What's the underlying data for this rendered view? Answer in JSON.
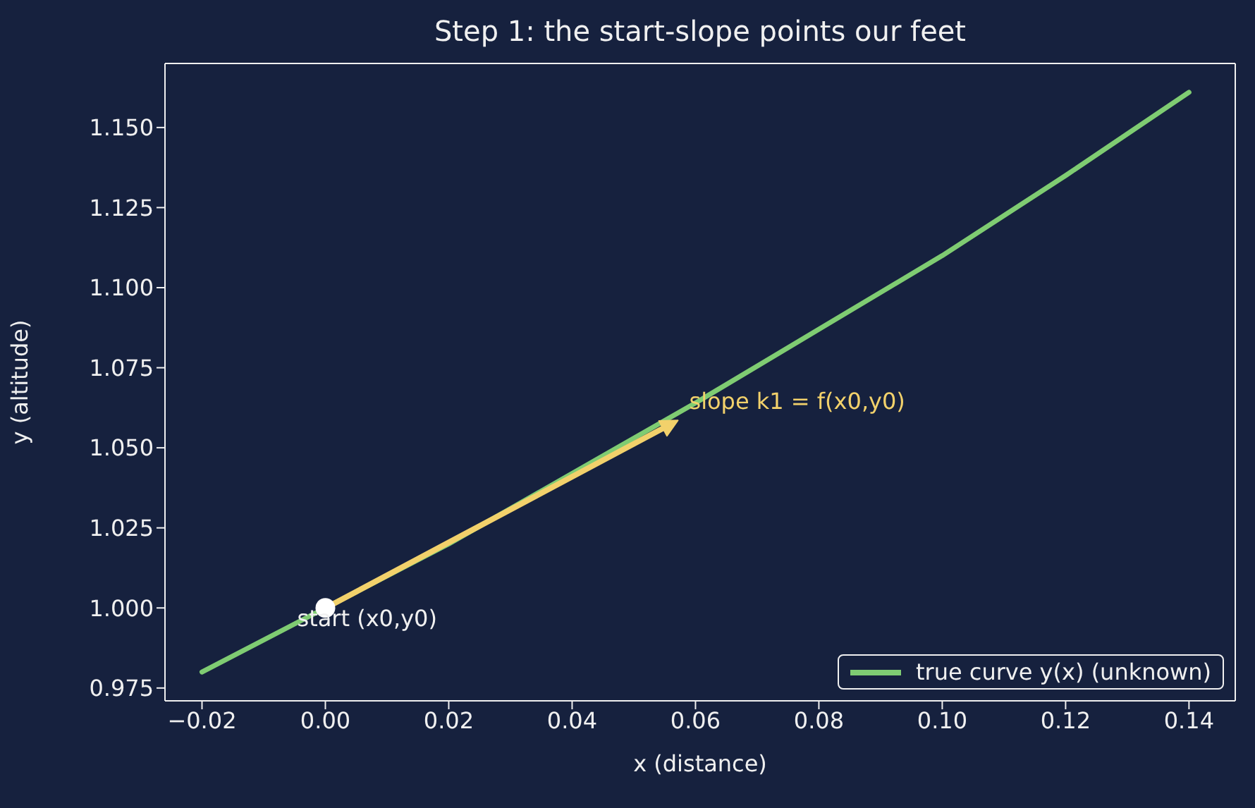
{
  "chart_data": {
    "type": "line",
    "title": "Step 1: the start-slope points our feet",
    "xlabel": "x (distance)",
    "ylabel": "y (altitude)",
    "xlim": [
      -0.026,
      0.1475
    ],
    "ylim": [
      0.971,
      1.17
    ],
    "xticks": [
      {
        "value": -0.02,
        "label": "−0.02"
      },
      {
        "value": 0,
        "label": "0.00"
      },
      {
        "value": 0.02,
        "label": "0.02"
      },
      {
        "value": 0.04,
        "label": "0.04"
      },
      {
        "value": 0.06,
        "label": "0.06"
      },
      {
        "value": 0.08,
        "label": "0.08"
      },
      {
        "value": 0.1,
        "label": "0.10"
      },
      {
        "value": 0.12,
        "label": "0.12"
      },
      {
        "value": 0.14,
        "label": "0.14"
      }
    ],
    "yticks": [
      {
        "value": 0.975,
        "label": "0.975"
      },
      {
        "value": 1,
        "label": "1.000"
      },
      {
        "value": 1.025,
        "label": "1.025"
      },
      {
        "value": 1.05,
        "label": "1.050"
      },
      {
        "value": 1.075,
        "label": "1.075"
      },
      {
        "value": 1.1,
        "label": "1.100"
      },
      {
        "value": 1.125,
        "label": "1.125"
      },
      {
        "value": 1.15,
        "label": "1.150"
      }
    ],
    "grid": false,
    "legend": "bottom right",
    "line_style": "solid",
    "series": [
      {
        "name": "true curve y(x) (unknown)",
        "color": "#7fcc72",
        "x": [
          -0.02,
          0,
          0.02,
          0.04,
          0.06,
          0.08,
          0.1,
          0.12,
          0.14
        ],
        "values": [
          0.98,
          1.0,
          1.02,
          1.042,
          1.064,
          1.087,
          1.11,
          1.135,
          1.161
        ]
      },
      {
        "type": "scatter",
        "color": "#ffffff",
        "marker": "circle",
        "x": [
          0
        ],
        "values": [
          1.0
        ]
      }
    ],
    "annotations": [
      {
        "text": "start (x0,y0)",
        "x": 0,
        "y": 1.0
      },
      "slope k1 = f(x0,y0)"
    ]
  }
}
